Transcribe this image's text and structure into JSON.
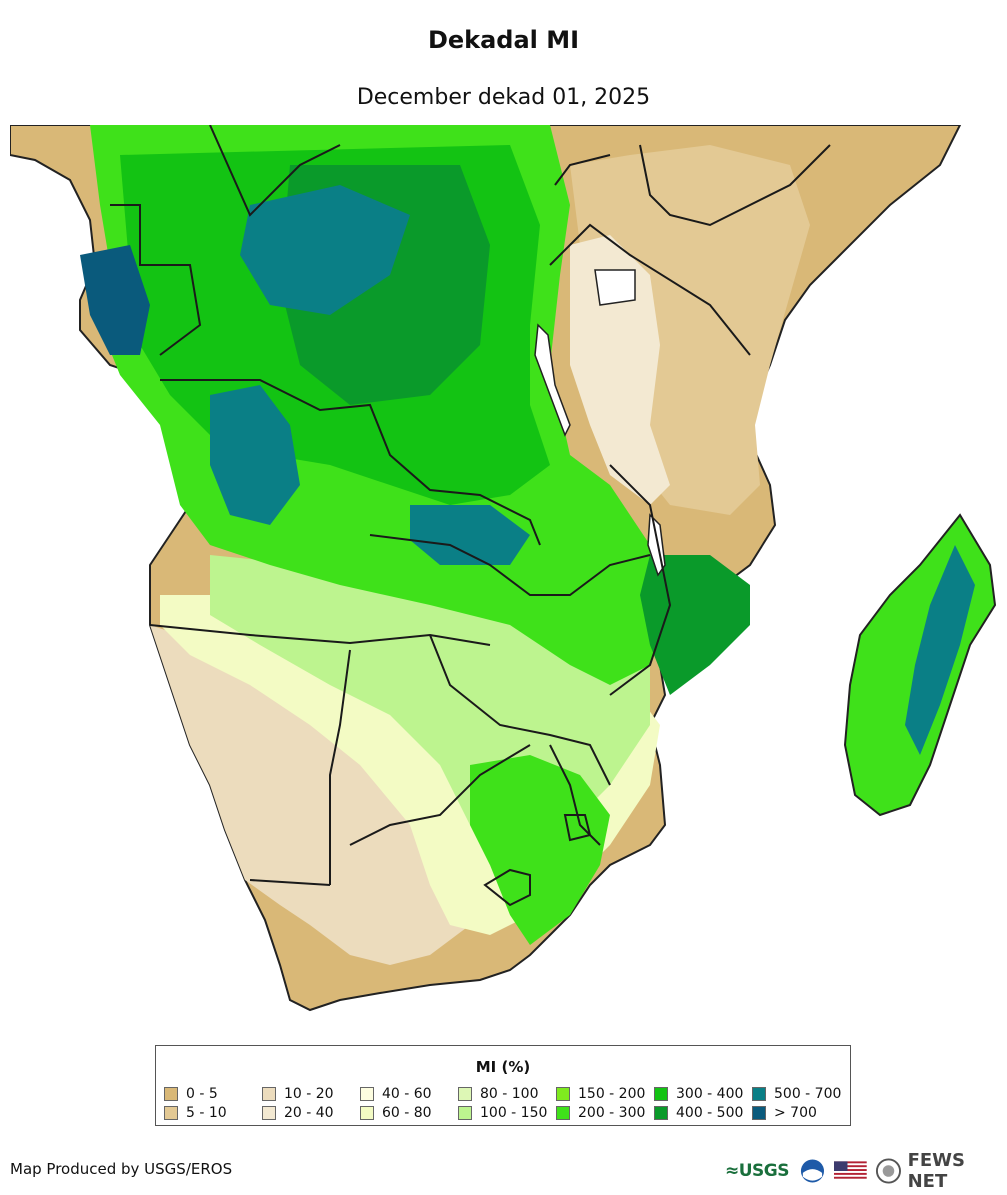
{
  "header": {
    "title": "Dekadal MI",
    "subtitle": "December dekad 01, 2025"
  },
  "map": {
    "region": "Southern Africa",
    "water_color": "#ffffff",
    "border_color": "#1a1a1a"
  },
  "legend": {
    "title": "MI (%)",
    "classes": [
      {
        "label": "0 - 5",
        "color": "#d9b877"
      },
      {
        "label": "5 - 10",
        "color": "#e3c994"
      },
      {
        "label": "10 - 20",
        "color": "#ecdcbd"
      },
      {
        "label": "20 - 40",
        "color": "#f3e9d2"
      },
      {
        "label": "40 - 60",
        "color": "#fdfde0"
      },
      {
        "label": "60 - 80",
        "color": "#f3fbc4"
      },
      {
        "label": "80 - 100",
        "color": "#ddf7b5"
      },
      {
        "label": "100 - 150",
        "color": "#bdf48f"
      },
      {
        "label": "150 - 200",
        "color": "#7fea1f"
      },
      {
        "label": "200 - 300",
        "color": "#3fe11a"
      },
      {
        "label": "300 - 400",
        "color": "#13c313"
      },
      {
        "label": "400 - 500",
        "color": "#0a9a2a"
      },
      {
        "label": "500 - 700",
        "color": "#0a7f86"
      },
      {
        "label": "> 700",
        "color": "#0a5a7c"
      }
    ]
  },
  "footer": {
    "credit": "Map Produced by USGS/EROS",
    "logos": {
      "usgs": "≈USGS",
      "fews": "FEWS NET"
    }
  }
}
